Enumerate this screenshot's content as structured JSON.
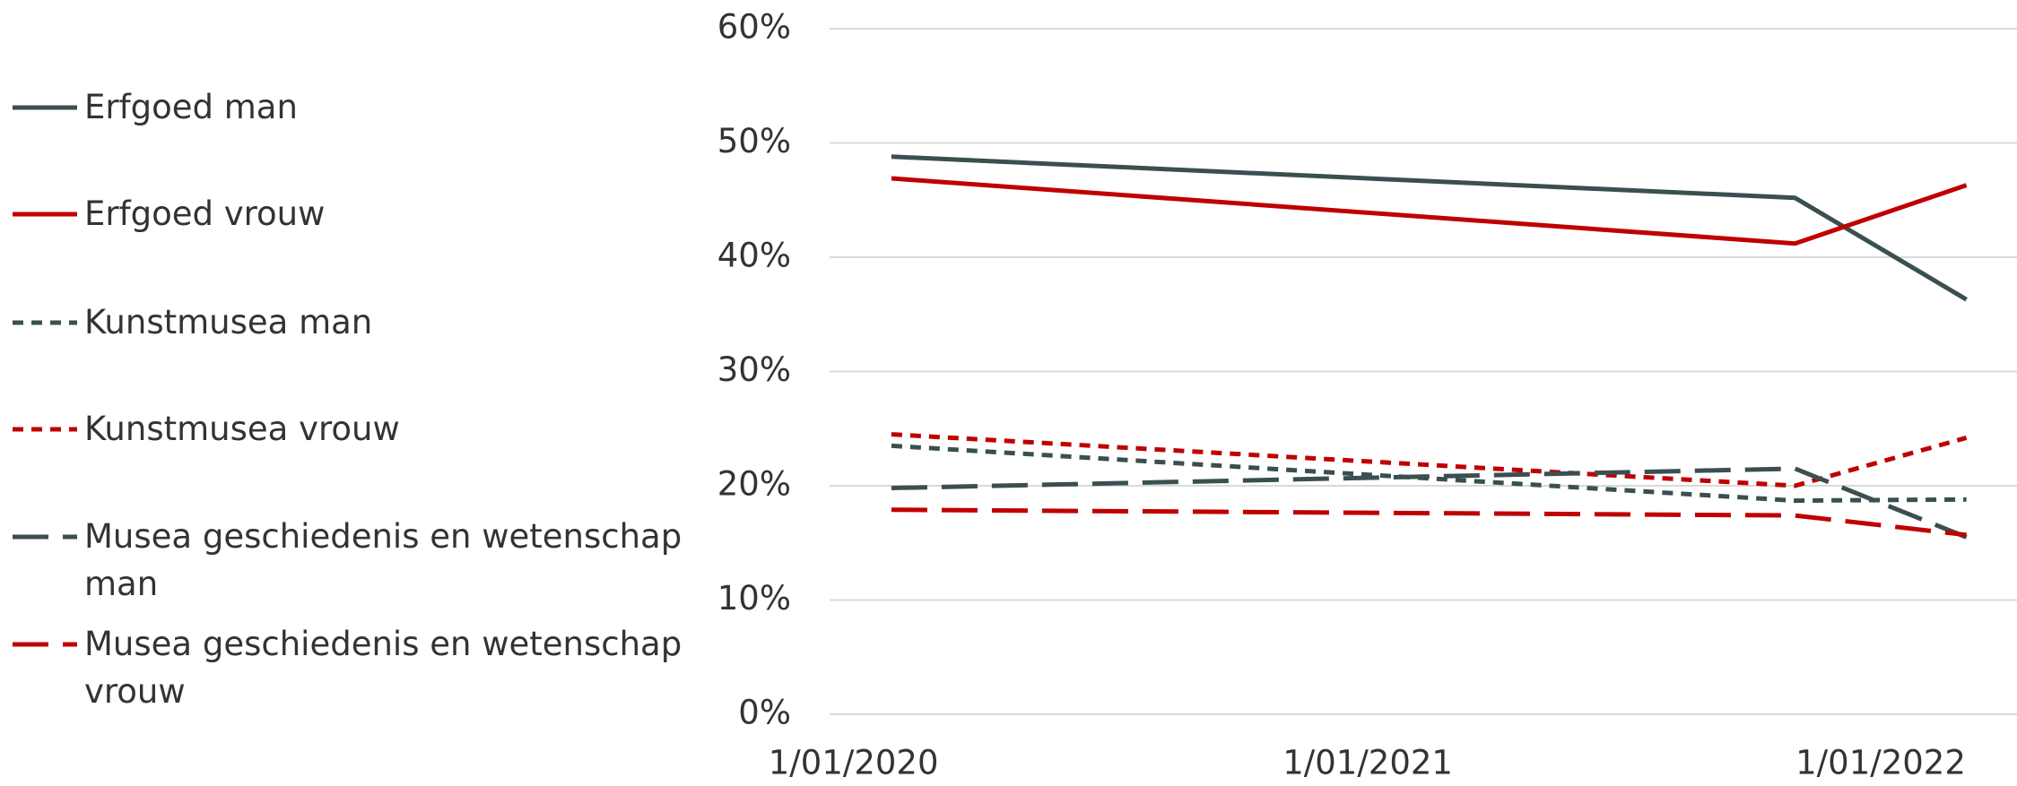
{
  "chart_data": {
    "type": "line",
    "x": [
      "2020-01-28",
      "2021-11-01",
      "2022-03-03"
    ],
    "xlim": [
      "2019-12-15",
      "2022-04-08"
    ],
    "xticks": [
      {
        "value": "2020-01-01",
        "label": "1/01/2020"
      },
      {
        "value": "2021-01-01",
        "label": "1/01/2021"
      },
      {
        "value": "2022-01-01",
        "label": "1/01/2022"
      }
    ],
    "ylim": [
      0,
      60
    ],
    "yticks": [
      {
        "value": 0,
        "label": "0%"
      },
      {
        "value": 10,
        "label": "10%"
      },
      {
        "value": 20,
        "label": "20%"
      },
      {
        "value": 30,
        "label": "30%"
      },
      {
        "value": 40,
        "label": "40%"
      },
      {
        "value": 50,
        "label": "50%"
      },
      {
        "value": 60,
        "label": "60%"
      }
    ],
    "grid": true,
    "legend": "left",
    "series": [
      {
        "name": "Erfgoed man",
        "color": "#3a4f50",
        "dash": "solid",
        "values": [
          48.8,
          45.2,
          36.3
        ]
      },
      {
        "name": "Erfgoed vrouw",
        "color": "#c00000",
        "dash": "solid",
        "values": [
          46.9,
          41.2,
          46.3
        ]
      },
      {
        "name": "Kunstmusea man",
        "color": "#3a4f50",
        "dash": "dot",
        "values": [
          23.5,
          18.7,
          18.8
        ]
      },
      {
        "name": "Kunstmusea vrouw",
        "color": "#c00000",
        "dash": "dot",
        "values": [
          24.5,
          20.0,
          24.2
        ]
      },
      {
        "name": "Musea geschiedenis en wetenschap man",
        "color": "#3a4f50",
        "dash": "dash",
        "values": [
          19.8,
          21.5,
          15.5
        ]
      },
      {
        "name": "Musea geschiedenis en wetenschap vrouw",
        "color": "#c00000",
        "dash": "dash",
        "values": [
          17.9,
          17.4,
          15.7
        ]
      }
    ]
  }
}
